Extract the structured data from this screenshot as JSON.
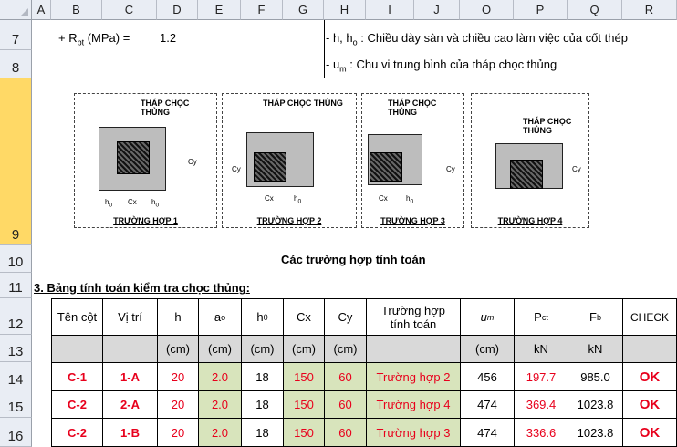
{
  "columns": [
    "A",
    "B",
    "C",
    "D",
    "E",
    "F",
    "G",
    "H",
    "I",
    "J",
    "O",
    "P",
    "Q",
    "R"
  ],
  "rows": [
    "7",
    "8",
    "9",
    "10",
    "11",
    "12",
    "13",
    "14",
    "15",
    "16"
  ],
  "row7": {
    "label": "+ R",
    "label_sub": "bt",
    "label_rest": " (MPa) =",
    "value": "1.2",
    "note": "- h, h",
    "note_sub": "o",
    "note_rest": " : Chiều dày sàn và chiều cao làm việc của cốt thép"
  },
  "row8": {
    "note": "- u",
    "note_sub": "m",
    "note_rest": " : Chu vi trung bình của tháp chọc thủng"
  },
  "diagrams": [
    {
      "title": "THÁP CHỌC THỦNG",
      "caption": "TRƯỜNG HỢP 1"
    },
    {
      "title": "THÁP CHỌC THỦNG",
      "caption": "TRƯỜNG HỢP 2"
    },
    {
      "title": "THÁP CHỌC THỦNG",
      "caption": "TRƯỜNG HỢP 3"
    },
    {
      "title": "THÁP CHỌC THỦNG",
      "caption": "TRƯỜNG HỢP 4"
    }
  ],
  "dim_labels": {
    "h0": "h",
    "h0_sub": "0",
    "cx": "Cx",
    "cy": "Cy"
  },
  "row10": {
    "caption": "Các trường hợp tính toán"
  },
  "row11": {
    "heading": "3. Bảng tính toán kiểm tra chọc thủng:"
  },
  "table": {
    "headers": {
      "ten_cot": "Tên cột",
      "vi_tri": "Vị trí",
      "h": "h",
      "ao": "a",
      "ao_sub": "o",
      "h0": "h",
      "h0_sub": "0",
      "cx": "Cx",
      "cy": "Cy",
      "truong_hop_1": "Trường hợp",
      "truong_hop_2": "tính toán",
      "um": "u",
      "um_sub": "m",
      "pct": "P",
      "pct_sub": "ct",
      "fb": "F",
      "fb_sub": "b",
      "check": "CHECK"
    },
    "units": {
      "h": "(cm)",
      "ao": "(cm)",
      "h0": "(cm)",
      "cx": "(cm)",
      "cy": "(cm)",
      "um": "(cm)",
      "pct": "kN",
      "fb": "kN"
    },
    "rows": [
      {
        "ten_cot": "C-1",
        "vi_tri": "1-A",
        "h": "20",
        "ao": "2.0",
        "h0": "18",
        "cx": "150",
        "cy": "60",
        "case": "Trường hợp 2",
        "um": "456",
        "pct": "197.7",
        "fb": "985.0",
        "check": "OK"
      },
      {
        "ten_cot": "C-2",
        "vi_tri": "2-A",
        "h": "20",
        "ao": "2.0",
        "h0": "18",
        "cx": "150",
        "cy": "60",
        "case": "Trường hợp 4",
        "um": "474",
        "pct": "369.4",
        "fb": "1023.8",
        "check": "OK"
      },
      {
        "ten_cot": "C-2",
        "vi_tri": "1-B",
        "h": "20",
        "ao": "2.0",
        "h0": "18",
        "cx": "150",
        "cy": "60",
        "case": "Trường hợp 3",
        "um": "474",
        "pct": "336.6",
        "fb": "1023.8",
        "check": "OK"
      }
    ]
  },
  "colors": {
    "header_bg": "#e9edf4",
    "selected_row": "#ffd966",
    "gray_cell": "#d9d9d9",
    "green_cell": "#d8e4bc",
    "red_text": "#e8001c"
  }
}
